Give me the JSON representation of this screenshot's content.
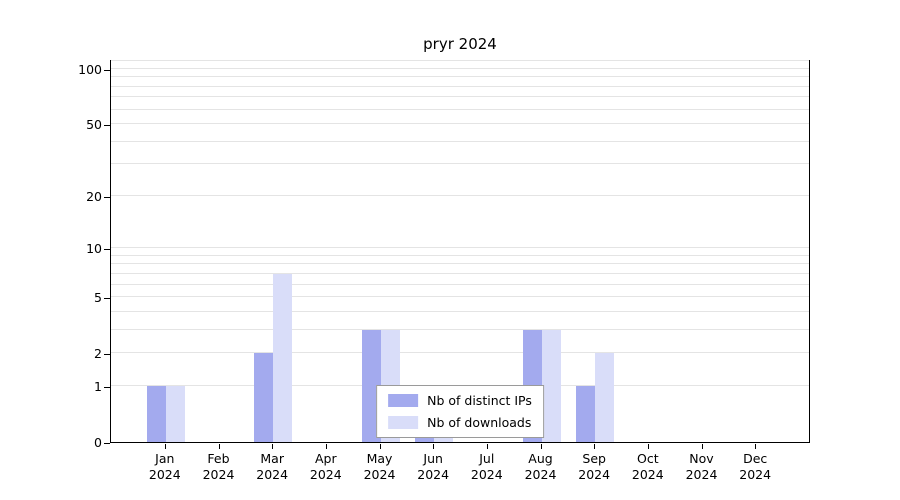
{
  "chart_data": {
    "type": "bar",
    "title": "pryr 2024",
    "categories": [
      "Jan",
      "Feb",
      "Mar",
      "Apr",
      "May",
      "Jun",
      "Jul",
      "Aug",
      "Sep",
      "Oct",
      "Nov",
      "Dec"
    ],
    "year_label": "2024",
    "x_tick_labels": [
      "Jan 2024",
      "Feb 2024",
      "Mar 2024",
      "Apr 2024",
      "May 2024",
      "Jun 2024",
      "Jul 2024",
      "Aug 2024",
      "Sep 2024",
      "Oct 2024",
      "Nov 2024",
      "Dec 2024"
    ],
    "series": [
      {
        "name": "Nb of distinct IPs",
        "color": "#a3aaee",
        "values": [
          1,
          0,
          2,
          0,
          3,
          1,
          0,
          3,
          1,
          0,
          0,
          0
        ]
      },
      {
        "name": "Nb of downloads",
        "color": "#d9ddf9",
        "values": [
          1,
          0,
          7,
          0,
          3,
          1,
          0,
          3,
          2,
          0,
          0,
          0
        ]
      }
    ],
    "xlabel": "",
    "ylabel": "",
    "yticks": [
      0,
      1,
      2,
      5,
      10,
      20,
      50,
      100
    ],
    "scale": "log(v+1)",
    "ylim": [
      0,
      113
    ],
    "grid": true,
    "legend_position": "inside-bottom-center"
  },
  "colors": {
    "background": "#ffffff",
    "grid": "#e4e4e4",
    "axis": "#000000",
    "legend_border": "#9a9a9a"
  }
}
